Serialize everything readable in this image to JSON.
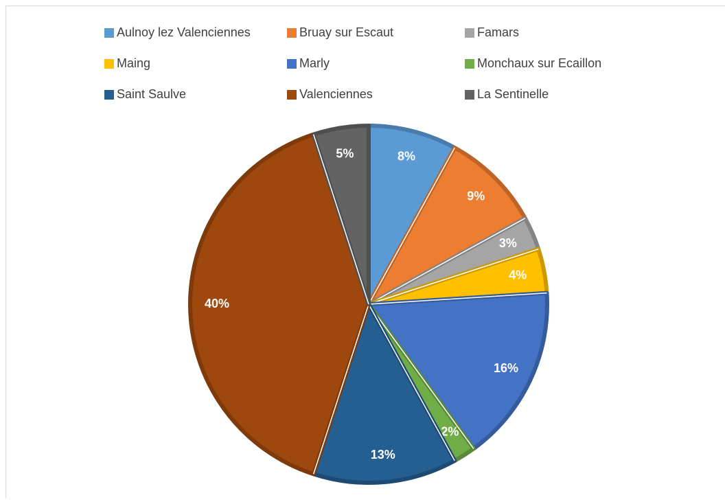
{
  "chart_data": {
    "type": "pie",
    "categories": [
      "Aulnoy lez Valenciennes",
      "Bruay sur Escaut",
      "Famars",
      "Maing",
      "Marly",
      "Monchaux sur Ecaillon",
      "Saint Saulve",
      "Valenciennes",
      "La Sentinelle"
    ],
    "values": [
      8,
      9,
      3,
      4,
      16,
      2,
      13,
      40,
      5
    ],
    "value_labels": [
      "8%",
      "9%",
      "3%",
      "4%",
      "16%",
      "2%",
      "13%",
      "40%",
      "5%"
    ],
    "colors": [
      "#5b9bd5",
      "#ed7d31",
      "#a5a5a5",
      "#ffc000",
      "#4472c4",
      "#70ad47",
      "#255e91",
      "#9e480e",
      "#636363"
    ],
    "legend": "top"
  }
}
